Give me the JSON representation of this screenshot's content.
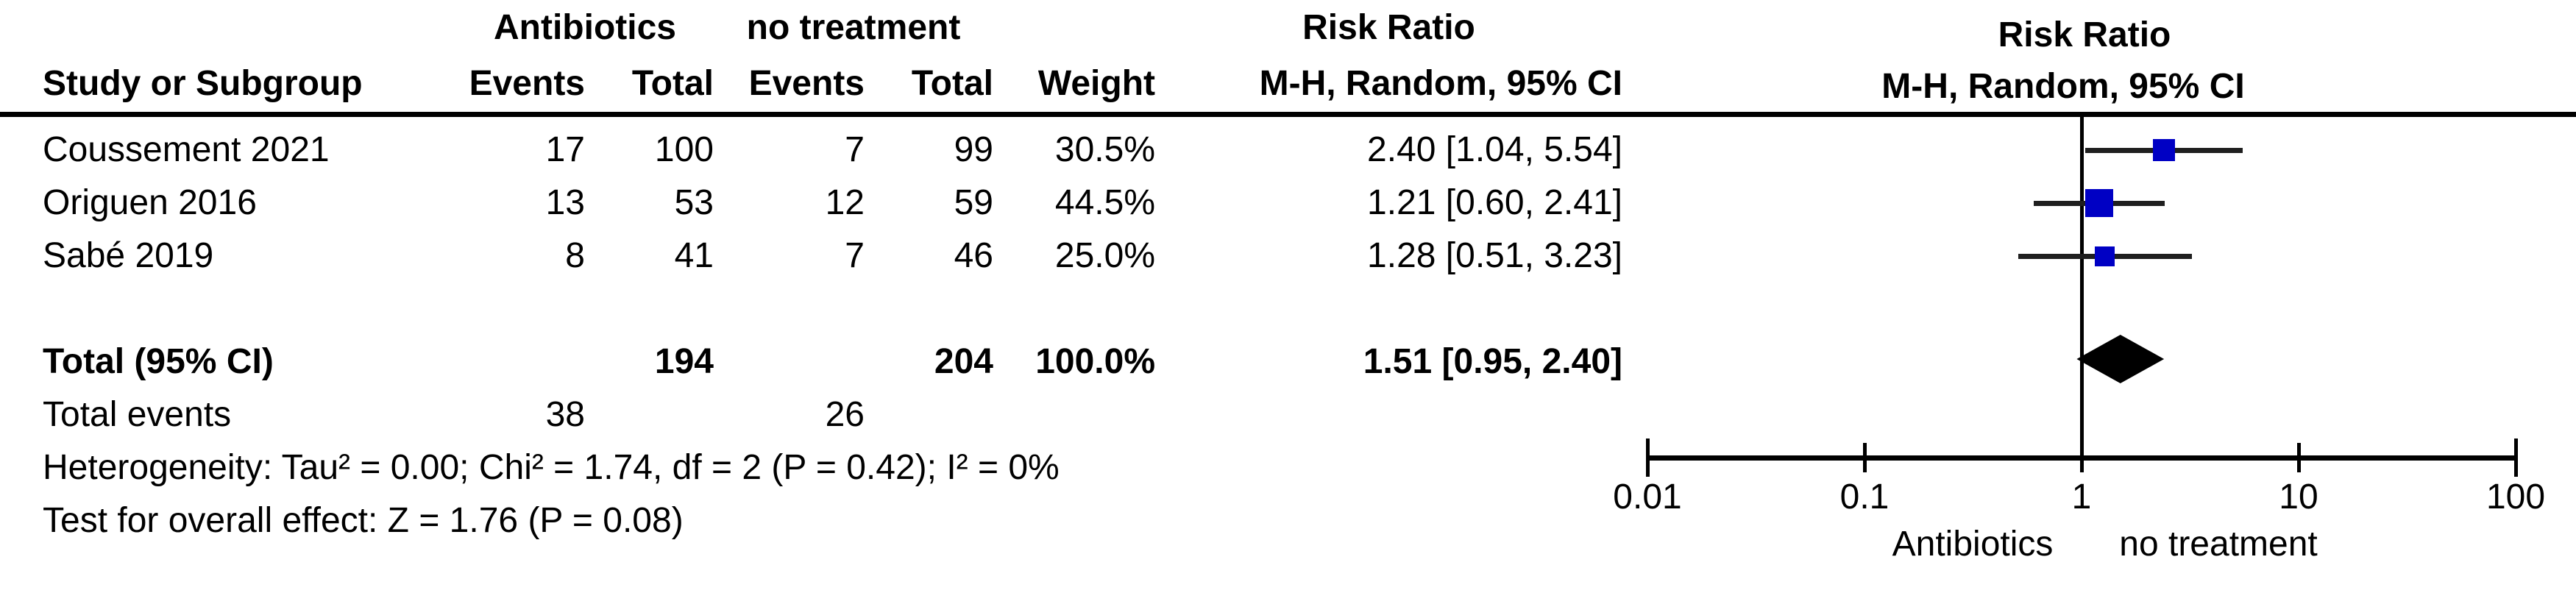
{
  "table": {
    "group_antibiotics": "Antibiotics",
    "group_no_treatment": "no treatment",
    "group_risk_ratio": "Risk Ratio",
    "col_study": "Study or Subgroup",
    "col_events": "Events",
    "col_total": "Total",
    "col_events2": "Events",
    "col_total2": "Total",
    "col_weight": "Weight",
    "col_mh": "M-H, Random, 95% CI",
    "total_events_label": "Total events"
  },
  "plot_header": {
    "title": "Risk Ratio",
    "subtitle": "M-H, Random, 95% CI"
  },
  "footer": {
    "heterogeneity": "Heterogeneity: Tau² = 0.00; Chi² = 1.74, df = 2 (P = 0.42); I² = 0%",
    "overall_effect": "Test for overall effect: Z = 1.76 (P = 0.08)"
  },
  "chart_data": {
    "type": "forest",
    "effect_measure": "Risk Ratio",
    "method": "M-H, Random, 95% CI",
    "x_scale": "log",
    "marker_color": "#0000c4",
    "studies": [
      {
        "name": "Coussement 2021",
        "events_treatment": 17,
        "total_treatment": 100,
        "events_control": 7,
        "total_control": 99,
        "weight_label": "30.5%",
        "weight_pct": 30.5,
        "rr": 2.4,
        "ci_low": 1.04,
        "ci_high": 5.54,
        "estimate_label": "2.40 [1.04, 5.54]"
      },
      {
        "name": "Origuen 2016",
        "events_treatment": 13,
        "total_treatment": 53,
        "events_control": 12,
        "total_control": 59,
        "weight_label": "44.5%",
        "weight_pct": 44.5,
        "rr": 1.21,
        "ci_low": 0.6,
        "ci_high": 2.41,
        "estimate_label": "1.21 [0.60, 2.41]"
      },
      {
        "name": "Sabé 2019",
        "events_treatment": 8,
        "total_treatment": 41,
        "events_control": 7,
        "total_control": 46,
        "weight_label": "25.0%",
        "weight_pct": 25.0,
        "rr": 1.28,
        "ci_low": 0.51,
        "ci_high": 3.23,
        "estimate_label": "1.28 [0.51, 3.23]"
      }
    ],
    "total": {
      "label": "Total (95% CI)",
      "total_treatment": 194,
      "total_control": 204,
      "weight_label": "100.0%",
      "rr": 1.51,
      "ci_low": 0.95,
      "ci_high": 2.4,
      "estimate_label": "1.51 [0.95, 2.40]"
    },
    "total_events": {
      "treatment": 38,
      "control": 26
    },
    "axis": {
      "ticks": [
        0.01,
        0.1,
        1,
        10,
        100
      ],
      "favours_left": "Antibiotics",
      "favours_right": "no treatment"
    }
  }
}
